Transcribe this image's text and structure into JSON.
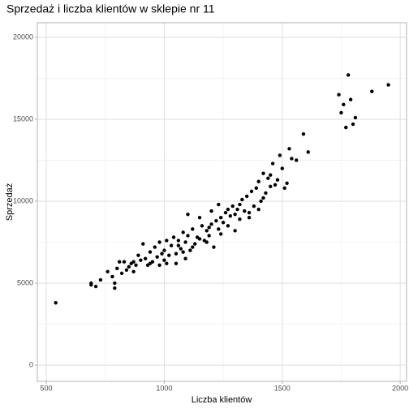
{
  "chart_data": {
    "type": "scatter",
    "title": "Sprzedaż i liczba klientów w sklepie nr 11",
    "xlabel": "Liczba klientów",
    "ylabel": "Sprzedaż",
    "color": "#000000",
    "grid": true,
    "xlim": [
      462,
      2027
    ],
    "ylim": [
      -990,
      20890
    ],
    "xticks": [
      500,
      1000,
      1500,
      2000
    ],
    "yticks": [
      0,
      5000,
      10000,
      15000,
      20000
    ],
    "xminor": [
      750,
      1250,
      1750
    ],
    "yminor": [
      2500,
      7500,
      12500,
      17500
    ],
    "x": [
      540,
      690,
      690,
      710,
      730,
      760,
      780,
      790,
      790,
      800,
      810,
      820,
      830,
      840,
      850,
      860,
      870,
      880,
      890,
      900,
      910,
      920,
      930,
      940,
      950,
      960,
      970,
      980,
      990,
      1000,
      1000,
      1010,
      1020,
      1030,
      1040,
      1050,
      1060,
      1070,
      1080,
      1090,
      1090,
      1100,
      1100,
      1110,
      1120,
      1130,
      1140,
      1150,
      1160,
      1170,
      1180,
      1190,
      1200,
      1200,
      1210,
      1220,
      1230,
      1240,
      1250,
      1260,
      1270,
      1280,
      1290,
      1300,
      1310,
      1320,
      1330,
      1340,
      1350,
      1360,
      1370,
      1380,
      1390,
      1400,
      1410,
      1420,
      1430,
      1440,
      1450,
      1460,
      1470,
      1480,
      1490,
      1500,
      1510,
      1520,
      1530,
      1540,
      1560,
      1590,
      1610,
      1740,
      1750,
      1760,
      1770,
      1780,
      1790,
      1800,
      1810,
      1880,
      1950,
      1050,
      1060,
      1080,
      1120,
      1150,
      1180,
      1010,
      980,
      940,
      870,
      1240,
      1270,
      1300,
      1320,
      1360,
      1190,
      1230,
      1400,
      1420,
      1450
    ],
    "values": [
      3800,
      5000,
      4900,
      4800,
      5200,
      5700,
      5400,
      4700,
      5000,
      5900,
      6300,
      5600,
      6300,
      5800,
      6000,
      6200,
      5700,
      6100,
      6700,
      6400,
      7400,
      6500,
      6100,
      6900,
      6300,
      7200,
      6600,
      6100,
      6800,
      6400,
      7000,
      6200,
      6700,
      7300,
      7800,
      6800,
      7600,
      7100,
      8100,
      6500,
      7500,
      7900,
      9200,
      7000,
      8300,
      7400,
      7800,
      9000,
      8500,
      7600,
      8200,
      7900,
      8600,
      9400,
      7200,
      8800,
      8300,
      9000,
      8700,
      9300,
      8500,
      9100,
      9700,
      8200,
      9500,
      9800,
      10100,
      9400,
      10300,
      9000,
      10600,
      9700,
      10800,
      11200,
      10000,
      11700,
      10500,
      11400,
      10900,
      12300,
      11000,
      11300,
      12800,
      12000,
      10800,
      11100,
      13200,
      12600,
      12500,
      14100,
      13000,
      16500,
      15400,
      15900,
      14500,
      17700,
      16200,
      14700,
      15100,
      16700,
      17100,
      6200,
      7300,
      6900,
      7200,
      7700,
      7500,
      7600,
      7500,
      6200,
      6300,
      8000,
      9500,
      9200,
      8900,
      9300,
      8400,
      9800,
      9500,
      10200,
      11600
    ]
  }
}
